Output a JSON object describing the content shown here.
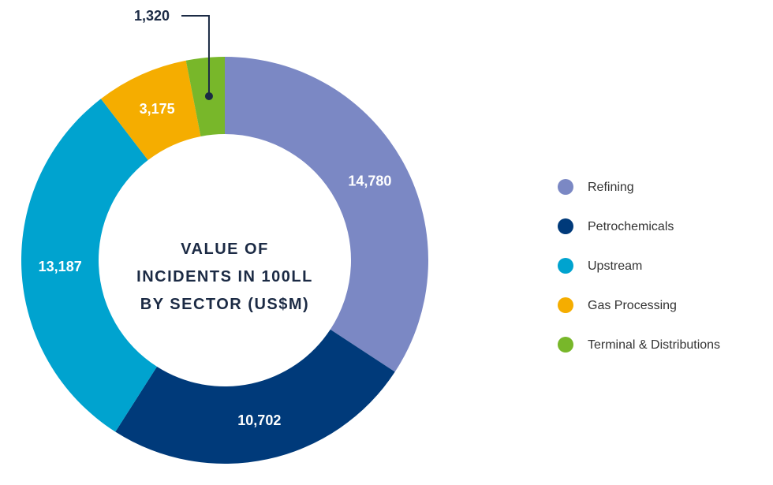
{
  "chart_data": {
    "type": "donut",
    "title": "VALUE OF INCIDENTS IN 100LL BY SECTOR (US$M)",
    "categories": [
      "Refining",
      "Petrochemicals",
      "Upstream",
      "Gas Processing",
      "Terminal & Distributions"
    ],
    "values": [
      14780,
      10702,
      13187,
      3175,
      1320
    ],
    "value_labels": [
      "14,780",
      "10,702",
      "13,187",
      "3,175",
      "1,320"
    ],
    "colors": [
      "#7b88c4",
      "#003a7a",
      "#00a3cf",
      "#f5ad00",
      "#78b72a"
    ],
    "legend": "right"
  }
}
